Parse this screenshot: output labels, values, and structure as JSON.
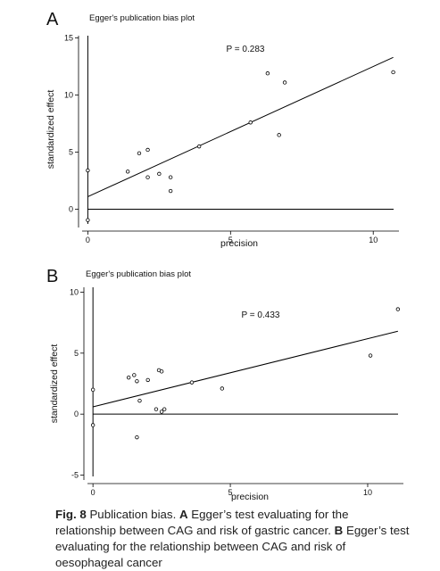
{
  "chart_data": [
    {
      "type": "scatter",
      "panel": "A",
      "title": "Egger's publication bias plot",
      "annotation": "P = 0.283",
      "xlabel": "precision",
      "ylabel": "standardized effect",
      "x": [
        0,
        0,
        1.4,
        1.8,
        2.1,
        2.1,
        2.5,
        2.9,
        2.9,
        3.9,
        5.7,
        6.3,
        6.7,
        6.9,
        10.7
      ],
      "y": [
        -0.95,
        3.4,
        3.3,
        4.9,
        5.2,
        2.8,
        3.1,
        2.8,
        1.6,
        5.5,
        7.6,
        11.9,
        6.5,
        11.1,
        12.0
      ],
      "fit_line": {
        "x": [
          0,
          10.7
        ],
        "y": [
          1.1,
          13.3
        ]
      },
      "xlim": [
        -0.2,
        10.9
      ],
      "ylim": [
        -1.6,
        15.2
      ],
      "xticks": [
        0,
        5,
        10
      ],
      "yticks": [
        0,
        5,
        10,
        15
      ]
    },
    {
      "type": "scatter",
      "panel": "B",
      "title": "Egger's publication bias plot",
      "annotation": "P = 0.433",
      "xlabel": "precision",
      "ylabel": "standardized effect",
      "x": [
        0,
        0,
        1.3,
        1.5,
        1.6,
        2.0,
        1.7,
        1.6,
        2.3,
        2.4,
        2.5,
        2.5,
        2.6,
        3.6,
        4.7,
        10.1,
        11.1
      ],
      "y": [
        2.0,
        -0.9,
        3.0,
        3.2,
        2.7,
        2.8,
        1.1,
        -1.9,
        0.4,
        3.6,
        3.5,
        0.2,
        0.4,
        2.6,
        2.1,
        4.8,
        8.6
      ],
      "fit_line": {
        "x": [
          0,
          11.1
        ],
        "y": [
          0.6,
          6.8
        ]
      },
      "xlim": [
        -0.2,
        11.3
      ],
      "ylim": [
        -5.4,
        10.4
      ],
      "xticks": [
        0,
        5,
        10
      ],
      "yticks": [
        -5,
        0,
        5,
        10
      ]
    }
  ],
  "caption": {
    "label": "Fig. 8",
    "text": "Publication bias.",
    "parts": [
      {
        "label": "A",
        "text": "Egger’s test evaluating for the relationship between CAG and risk of gastric cancer."
      },
      {
        "label": "B",
        "text": "Egger’s test evaluating for the relationship between CAG and risk of oesophageal cancer"
      }
    ]
  }
}
